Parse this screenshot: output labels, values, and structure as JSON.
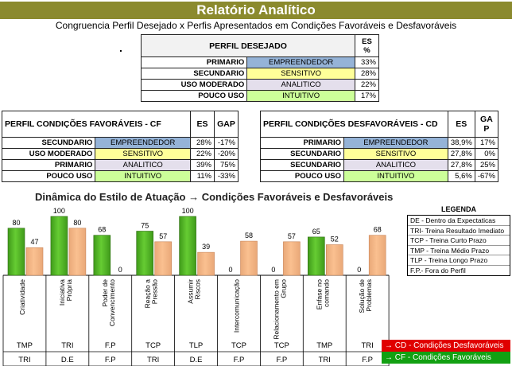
{
  "header": {
    "title": "Relatório Analítico",
    "subtitle": "Congruencia Perfil Desejado x Perfis Apresentados em Condições Favoráveis e Desfavoráveis",
    "bullet": "."
  },
  "desired": {
    "headers": [
      "PERFIL DESEJADO",
      "ES %"
    ],
    "rows": [
      {
        "level": "PRIMARIO",
        "style": "EMPREENDEDOR",
        "es": "33%",
        "color": "#95b3d7"
      },
      {
        "level": "SECUNDARIO",
        "style": "SENSITIVO",
        "es": "28%",
        "color": "#ffff99"
      },
      {
        "level": "USO MODERADO",
        "style": "ANALITICO",
        "es": "22%",
        "color": "#e4dfec"
      },
      {
        "level": "POUCO USO",
        "style": "INTUITIVO",
        "es": "17%",
        "color": "#ccff99"
      }
    ]
  },
  "favorable": {
    "headers": [
      "PERFIL CONDIÇÕES FAVORÁVEIS - CF",
      "ES",
      "GAP"
    ],
    "rows": [
      {
        "level": "SECUNDARIO",
        "style": "EMPREENDEDOR",
        "es": "28%",
        "gap": "-17%",
        "color": "#95b3d7"
      },
      {
        "level": "USO MODERADO",
        "style": "SENSITIVO",
        "es": "22%",
        "gap": "-20%",
        "color": "#ffff99"
      },
      {
        "level": "PRIMARIO",
        "style": "ANALITICO",
        "es": "39%",
        "gap": "75%",
        "color": "#e4dfec"
      },
      {
        "level": "POUCO USO",
        "style": "INTUITIVO",
        "es": "11%",
        "gap": "-33%",
        "color": "#ccff99"
      }
    ]
  },
  "unfavorable": {
    "headers": [
      "PERFIL CONDIÇÕES DESFAVORÁVEIS - CD",
      "ES",
      "GA P"
    ],
    "rows": [
      {
        "level": "PRIMARIO",
        "style": "EMPREENDEDOR",
        "es": "38,9%",
        "gap": "17%",
        "color": "#95b3d7"
      },
      {
        "level": "SECUNDARIO",
        "style": "SENSITIVO",
        "es": "27,8%",
        "gap": "0%",
        "color": "#ffff99"
      },
      {
        "level": "SECUNDARIO",
        "style": "ANALITICO",
        "es": "27,8%",
        "gap": "25%",
        "color": "#e4dfec"
      },
      {
        "level": "POUCO USO",
        "style": "INTUITIVO",
        "es": "5,6%",
        "gap": "-67%",
        "color": "#ccff99"
      }
    ]
  },
  "section": {
    "title": "Dinâmica do Estilo de Atuação  →  Condições Favoráveis e Desfavoráveis"
  },
  "legend": {
    "title": "LEGENDA",
    "items": [
      "DE - Dentro da Expectaticas",
      "TRI- Treina Resultado Imediato",
      "TCP - Treina Curto Prazo",
      "TMP - Treina Médio Prazo",
      "TLP - Treina Longo Prazo",
      "F.P.- Fora do Perfil"
    ],
    "cd": "→ CD - Condições Desfavoráveis",
    "cf": "→ CF - Condições Favoráveis"
  },
  "colors": {
    "cf_bar": "#66cc33",
    "cd_bar": "#fac090",
    "title_bg": "#8b8a2e"
  },
  "chart_data": {
    "type": "bar",
    "categories": [
      "Criatividade",
      "Iniciativa Própria",
      "Poder de Convencimento",
      "Reação a Pressão",
      "Assumir Riscos",
      "Intercomunicação",
      "Relacionamento em Grupo",
      "Enfase no comando",
      "Solução de Problemas"
    ],
    "series": [
      {
        "values": [
          80,
          100,
          68,
          75,
          100,
          0,
          0,
          65,
          0
        ],
        "color": "#66cc33"
      },
      {
        "values": [
          47,
          80,
          0,
          57,
          39,
          58,
          57,
          52,
          68
        ],
        "color": "#fac090"
      }
    ],
    "row1": [
      "TMP",
      "TRI",
      "F.P",
      "TCP",
      "TLP",
      "TCP",
      "TCP",
      "TMP",
      "TRI"
    ],
    "row2": [
      "TRI",
      "D.E",
      "F.P",
      "TRI",
      "D.E",
      "F.P",
      "F.P",
      "TRI",
      "F.P"
    ],
    "ylim": [
      0,
      100
    ]
  }
}
